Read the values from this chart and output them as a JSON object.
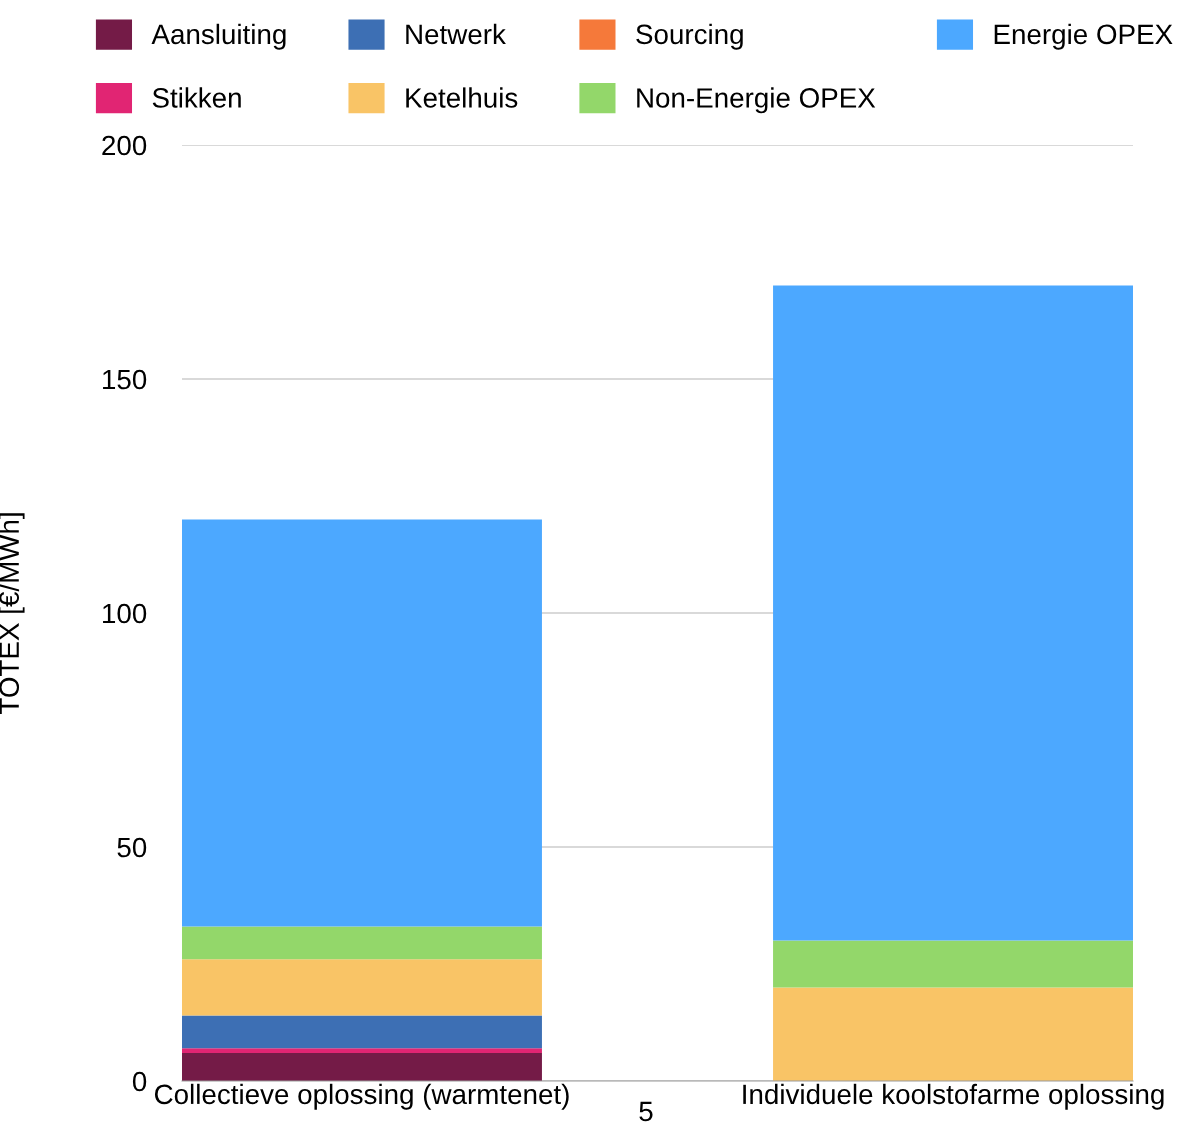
{
  "chart_data": {
    "type": "bar",
    "stacked": true,
    "ylabel": "TOTEX [€/MWh]",
    "categories": [
      "Collectieve oplossing (warmtenet)",
      "Individuele koolstofarme oplossing"
    ],
    "series": [
      {
        "name": "Aansluiting",
        "color": "#741b47",
        "values": [
          6,
          0
        ]
      },
      {
        "name": "Stikken",
        "color": "#e12573",
        "values": [
          1,
          0
        ]
      },
      {
        "name": "Netwerk",
        "color": "#3d6fb4",
        "values": [
          7,
          0
        ]
      },
      {
        "name": "Ketelhuis",
        "color": "#f9c466",
        "values": [
          12,
          20
        ]
      },
      {
        "name": "Sourcing",
        "color": "#f5793a",
        "values": [
          0,
          0
        ]
      },
      {
        "name": "Non-Energie OPEX",
        "color": "#93d76a",
        "values": [
          7,
          10
        ]
      },
      {
        "name": "Energie OPEX",
        "color": "#4ca8ff",
        "values": [
          87,
          140
        ]
      }
    ],
    "ylim": [
      0,
      200
    ],
    "yticks": [
      0,
      50,
      100,
      150,
      200
    ],
    "grid": "y",
    "legend": "top",
    "annotations": [
      "5"
    ]
  }
}
